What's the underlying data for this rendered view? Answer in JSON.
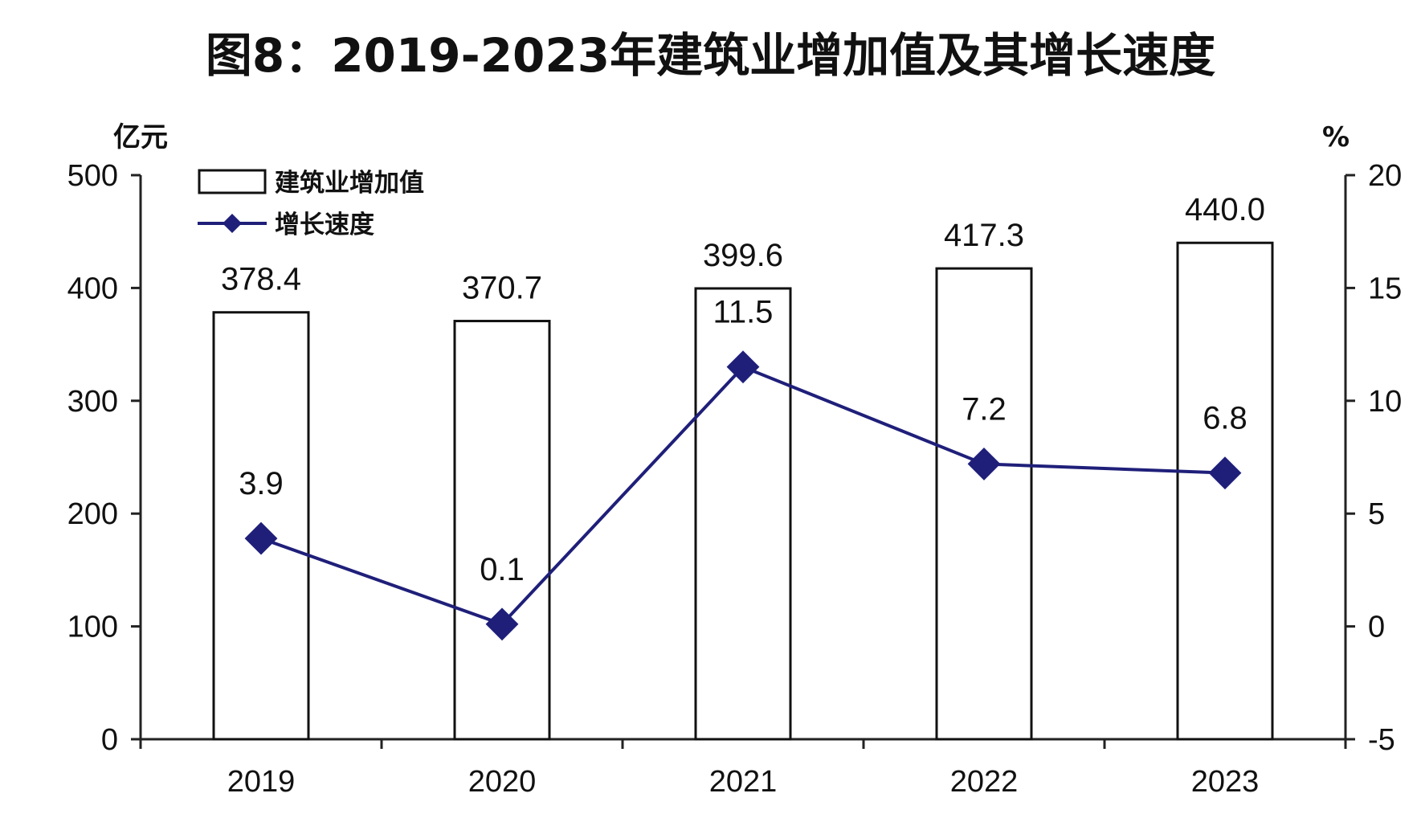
{
  "chart_data": {
    "type": "bar",
    "title": "图8：2019-2023年建筑业增加值及其增长速度",
    "categories": [
      "2019",
      "2020",
      "2021",
      "2022",
      "2023"
    ],
    "series": [
      {
        "name": "建筑业增加值",
        "type": "bar",
        "axis": "left",
        "values": [
          378.4,
          370.7,
          399.6,
          417.3,
          440.0
        ],
        "labels": [
          "378.4",
          "370.7",
          "399.6",
          "417.3",
          "440.0"
        ]
      },
      {
        "name": "增长速度",
        "type": "line",
        "axis": "right",
        "marker": "diamond",
        "color": "#1f1f7a",
        "values": [
          3.9,
          0.1,
          11.5,
          7.2,
          6.8
        ],
        "labels": [
          "3.9",
          "0.1",
          "11.5",
          "7.2",
          "6.8"
        ]
      }
    ],
    "y_left": {
      "unit": "亿元",
      "range": [
        0,
        500
      ],
      "ticks": [
        0,
        100,
        200,
        300,
        400,
        500
      ],
      "tick_labels": [
        "0",
        "100",
        "200",
        "300",
        "400",
        "500"
      ]
    },
    "y_right": {
      "unit": "%",
      "range": [
        -5,
        20
      ],
      "ticks": [
        -5,
        0,
        5,
        10,
        15,
        20
      ],
      "tick_labels": [
        "-5",
        "0",
        "5",
        "10",
        "15",
        "20"
      ]
    },
    "grid": false,
    "legend_position": "top-left"
  }
}
